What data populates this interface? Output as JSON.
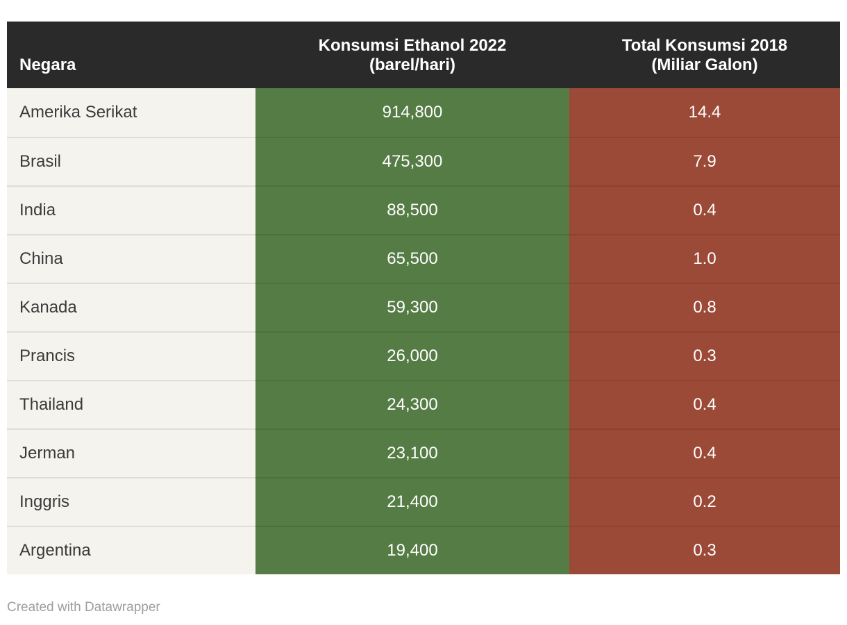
{
  "colors": {
    "header_bg": "#2a2a2b",
    "negara_column_bg": "#f5f3ee",
    "ethanol_column_bg": "#567c46",
    "total_column_bg": "#9b4a38",
    "header_text": "#ffffff",
    "value_text": "#ffffff",
    "country_text": "#3a3a3a",
    "attribution_text": "#9e9e9e",
    "row_divider": "rgba(0,0,0,0.09)"
  },
  "table": {
    "columns": [
      {
        "label_line1": "Negara",
        "label_line2": ""
      },
      {
        "label_line1": "Konsumsi Ethanol 2022",
        "label_line2": "(barel/hari)"
      },
      {
        "label_line1": "Total Konsumsi 2018",
        "label_line2": "(Miliar Galon)"
      }
    ],
    "rows": [
      {
        "negara": "Amerika Serikat",
        "ethanol": "914,800",
        "total": "14.4"
      },
      {
        "negara": "Brasil",
        "ethanol": "475,300",
        "total": "7.9"
      },
      {
        "negara": "India",
        "ethanol": "88,500",
        "total": "0.4"
      },
      {
        "negara": "China",
        "ethanol": "65,500",
        "total": "1.0"
      },
      {
        "negara": "Kanada",
        "ethanol": "59,300",
        "total": "0.8"
      },
      {
        "negara": "Prancis",
        "ethanol": "26,000",
        "total": "0.3"
      },
      {
        "negara": "Thailand",
        "ethanol": "24,300",
        "total": "0.4"
      },
      {
        "negara": "Jerman",
        "ethanol": "23,100",
        "total": "0.4"
      },
      {
        "negara": "Inggris",
        "ethanol": "21,400",
        "total": "0.2"
      },
      {
        "negara": "Argentina",
        "ethanol": "19,400",
        "total": "0.3"
      }
    ]
  },
  "footer": {
    "attribution": "Created with Datawrapper"
  },
  "chart_data": {
    "type": "table",
    "title": "",
    "columns": [
      "Negara",
      "Konsumsi Ethanol 2022 (barel/hari)",
      "Total Konsumsi 2018 (Miliar Galon)"
    ],
    "rows": [
      [
        "Amerika Serikat",
        914800,
        14.4
      ],
      [
        "Brasil",
        475300,
        7.9
      ],
      [
        "India",
        88500,
        0.4
      ],
      [
        "China",
        65500,
        1.0
      ],
      [
        "Kanada",
        59300,
        0.8
      ],
      [
        "Prancis",
        26000,
        0.3
      ],
      [
        "Thailand",
        24300,
        0.4
      ],
      [
        "Jerman",
        23100,
        0.4
      ],
      [
        "Inggris",
        21400,
        0.2
      ],
      [
        "Argentina",
        19400,
        0.3
      ]
    ],
    "layout_hints": {
      "value_alignment": "center",
      "country_alignment": "left",
      "header_alignment": [
        "left",
        "center",
        "center"
      ],
      "grid": "horizontal-dividers"
    }
  }
}
